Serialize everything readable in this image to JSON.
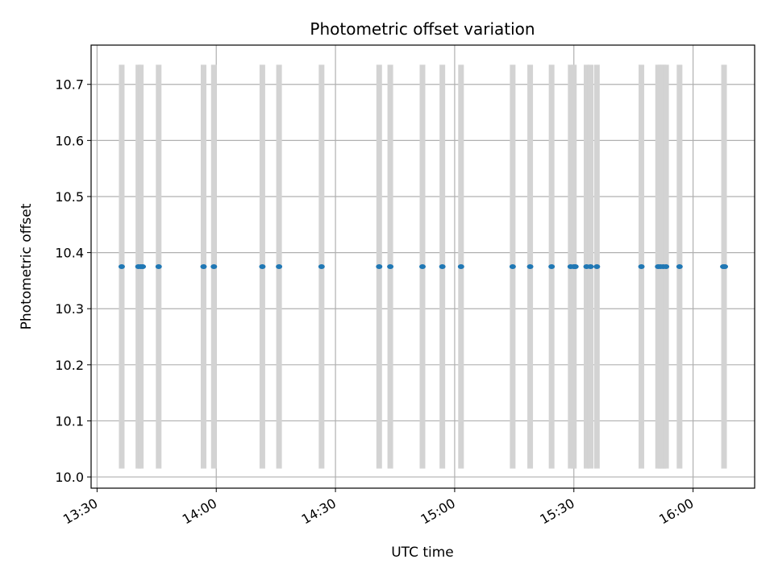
{
  "chart_data": {
    "type": "scatter",
    "title": "Photometric offset variation",
    "xlabel": "UTC time",
    "ylabel": "Photometric offset",
    "x_unit": "minutes since 13:30 UTC",
    "xlim": [
      -1.5,
      165.5
    ],
    "ylim": [
      9.98,
      10.77
    ],
    "grid": true,
    "x_ticks": [
      {
        "value": 0,
        "label": "13:30"
      },
      {
        "value": 30,
        "label": "14:00"
      },
      {
        "value": 60,
        "label": "14:30"
      },
      {
        "value": 90,
        "label": "15:00"
      },
      {
        "value": 120,
        "label": "15:30"
      },
      {
        "value": 150,
        "label": "16:00"
      }
    ],
    "y_ticks": [
      {
        "value": 10.0,
        "label": "10.0"
      },
      {
        "value": 10.1,
        "label": "10.1"
      },
      {
        "value": 10.2,
        "label": "10.2"
      },
      {
        "value": 10.3,
        "label": "10.3"
      },
      {
        "value": 10.4,
        "label": "10.4"
      },
      {
        "value": 10.5,
        "label": "10.5"
      },
      {
        "value": 10.6,
        "label": "10.6"
      },
      {
        "value": 10.7,
        "label": "10.7"
      }
    ],
    "span_range": [
      10.015,
      10.735
    ],
    "spans": [
      6.2,
      10.4,
      11.0,
      15.5,
      26.8,
      29.4,
      41.6,
      45.8,
      56.5,
      71.0,
      73.8,
      81.9,
      86.9,
      91.6,
      104.6,
      109.0,
      114.4,
      119.2,
      120.0,
      123.2,
      124.2,
      125.8,
      137.0,
      141.2,
      141.8,
      142.5,
      143.2,
      146.6,
      157.8
    ],
    "series": [
      {
        "name": "offset",
        "color": "#1f77b4",
        "points": [
          {
            "x": 6.2,
            "y": 10.375
          },
          {
            "x": 10.4,
            "y": 10.375
          },
          {
            "x": 11.0,
            "y": 10.375
          },
          {
            "x": 11.5,
            "y": 10.375
          },
          {
            "x": 15.5,
            "y": 10.375
          },
          {
            "x": 26.8,
            "y": 10.375
          },
          {
            "x": 29.4,
            "y": 10.375
          },
          {
            "x": 41.6,
            "y": 10.375
          },
          {
            "x": 45.8,
            "y": 10.375
          },
          {
            "x": 56.5,
            "y": 10.375
          },
          {
            "x": 71.0,
            "y": 10.375
          },
          {
            "x": 73.8,
            "y": 10.375
          },
          {
            "x": 81.9,
            "y": 10.375
          },
          {
            "x": 86.9,
            "y": 10.375
          },
          {
            "x": 91.6,
            "y": 10.375
          },
          {
            "x": 104.6,
            "y": 10.375
          },
          {
            "x": 109.0,
            "y": 10.375
          },
          {
            "x": 114.4,
            "y": 10.375
          },
          {
            "x": 119.2,
            "y": 10.375
          },
          {
            "x": 120.0,
            "y": 10.375
          },
          {
            "x": 120.4,
            "y": 10.375
          },
          {
            "x": 123.2,
            "y": 10.375
          },
          {
            "x": 124.2,
            "y": 10.375
          },
          {
            "x": 125.8,
            "y": 10.375
          },
          {
            "x": 137.0,
            "y": 10.375
          },
          {
            "x": 141.2,
            "y": 10.375
          },
          {
            "x": 141.8,
            "y": 10.375
          },
          {
            "x": 142.5,
            "y": 10.375
          },
          {
            "x": 143.2,
            "y": 10.375
          },
          {
            "x": 146.6,
            "y": 10.375
          },
          {
            "x": 157.6,
            "y": 10.375
          },
          {
            "x": 158.0,
            "y": 10.375
          }
        ]
      }
    ]
  }
}
